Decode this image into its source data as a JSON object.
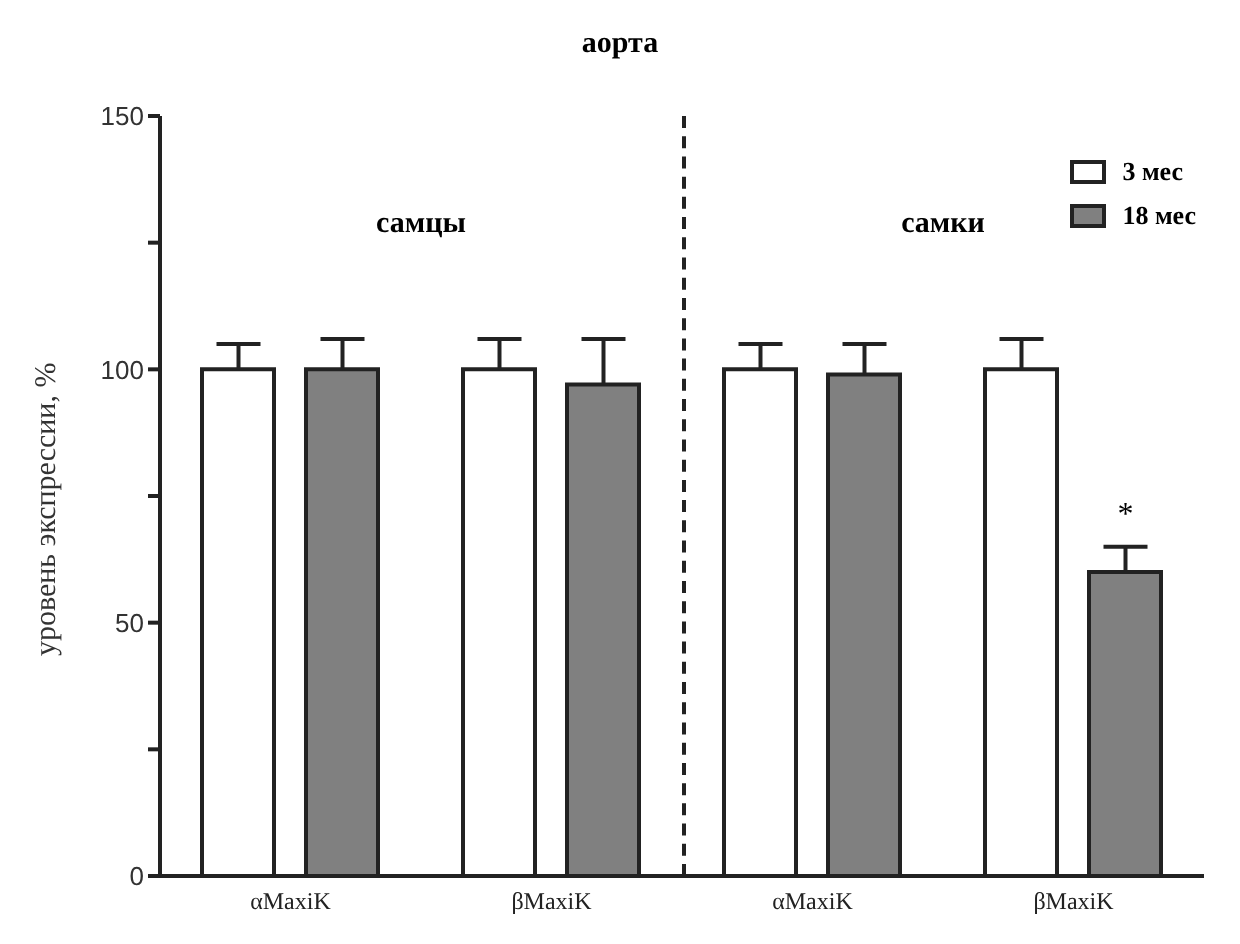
{
  "chart_data": {
    "type": "bar",
    "title": "аорта",
    "ylabel": "уровень экспрессии, %",
    "categories": [
      "αMaxiK",
      "βMaxiK",
      "αMaxiK",
      "βMaxiK"
    ],
    "series": [
      {
        "name": "3 мес",
        "color": "#ffffff",
        "values": [
          100,
          100,
          100,
          100
        ],
        "errors": [
          [
            100,
            105
          ],
          [
            100,
            106
          ],
          [
            100,
            105
          ],
          [
            100,
            106
          ]
        ]
      },
      {
        "name": "18 мес",
        "color": "#808080",
        "values": [
          100,
          97,
          99,
          60
        ],
        "errors": [
          [
            100,
            106
          ],
          [
            97,
            106
          ],
          [
            99,
            105
          ],
          [
            60,
            65
          ]
        ]
      }
    ],
    "ylim": [
      0,
      150
    ],
    "yticks": [
      0,
      {
        "value": 25,
        "label": null
      },
      50,
      {
        "value": 75,
        "label": null
      },
      100,
      {
        "value": 125,
        "label": null
      },
      150
    ],
    "grid": false,
    "legend": "top right",
    "annotations": [
      "самцы",
      "самки",
      "*"
    ]
  }
}
